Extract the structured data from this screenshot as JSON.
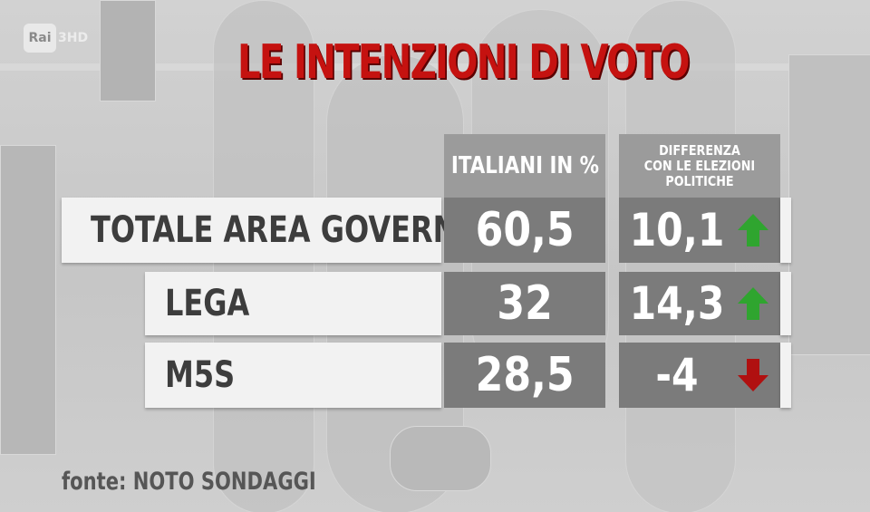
{
  "channel": {
    "logo_text": "Rai",
    "channel_text": "3HD"
  },
  "chart_data": {
    "type": "table",
    "title": "LE INTENZIONI DI VOTO",
    "columns": [
      "ITALIANI IN %",
      "DIFFERENZA CON LE ELEZIONI POLITICHE"
    ],
    "header_diff_lines": [
      "DIFFERENZA",
      "CON LE ELEZIONI",
      "POLITICHE"
    ],
    "rows": [
      {
        "label": "TOTALE AREA GOVERNO",
        "value": "60,5",
        "diff": "10,1",
        "trend": "up"
      },
      {
        "label": "LEGA",
        "value": "32",
        "diff": "14,3",
        "trend": "up"
      },
      {
        "label": "M5S",
        "value": "28,5",
        "diff": "-4",
        "trend": "down"
      }
    ],
    "source": "fonte: NOTO SONDAGGI"
  },
  "colors": {
    "title": "#c51210",
    "up_arrow": "#2fa52f",
    "down_arrow": "#b01010",
    "value_box": "#7b7b7b",
    "header_box": "#9b9b9b"
  }
}
